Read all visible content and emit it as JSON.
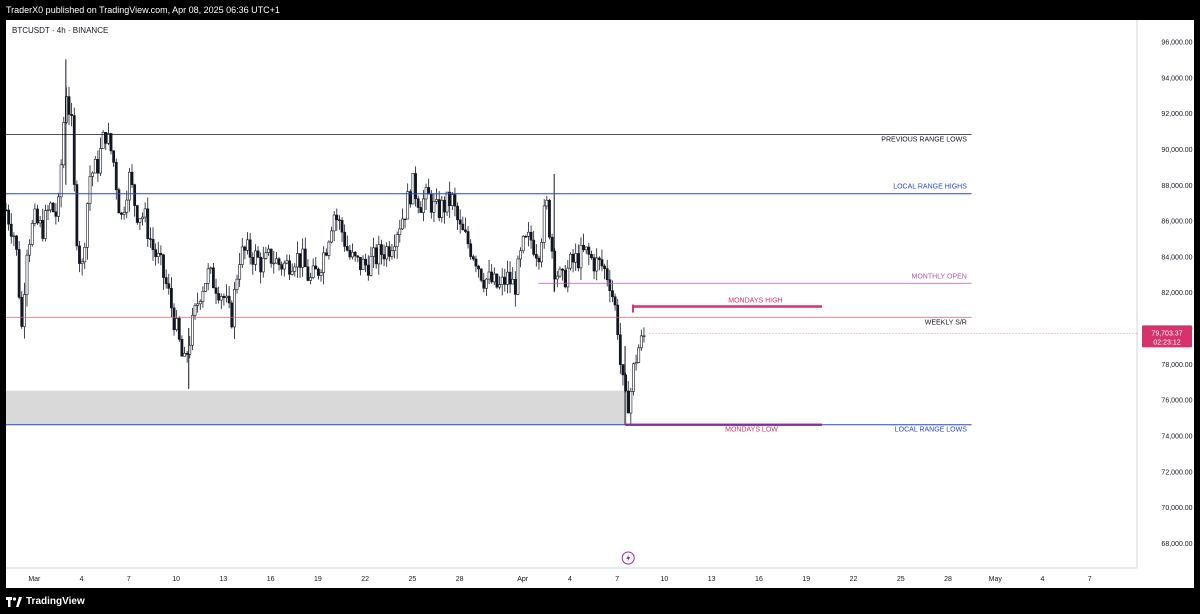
{
  "header": {
    "published_text": "TraderX0 published on TradingView.com, Apr 08, 2025 06:36 UTC+1"
  },
  "symbol_line": "BTCUSDT · 4h · BINANCE",
  "footer": {
    "brand": "TradingView"
  },
  "colors": {
    "up": "#131722",
    "down": "#131722",
    "black_line": "#131722",
    "blue_line": "#2946d8",
    "pink": "#d6336c",
    "purple": "#b05ab8",
    "weekly": "#c26470",
    "zone": "#d9d9d9",
    "price_tag": "#d6336c"
  },
  "chart_data": {
    "type": "candlestick",
    "symbol": "BTCUSDT",
    "interval": "4h",
    "exchange": "BINANCE",
    "ylim": [
      66600,
      97200
    ],
    "y_ticks": [
      68000,
      70000,
      72000,
      74000,
      76000,
      78000,
      80000,
      82000,
      84000,
      86000,
      88000,
      90000,
      92000,
      94000,
      96000
    ],
    "y_tick_labels": [
      "68,000.00",
      "70,000.00",
      "72,000.00",
      "74,000.00",
      "76,000.00",
      "78,000.00",
      "80,000.00",
      "82,000.00",
      "84,000.00",
      "86,000.00",
      "88,000.00",
      "90,000.00",
      "92,000.00",
      "94,000.00",
      "96,000.00"
    ],
    "x_ticks": [
      {
        "day": 0,
        "label": "Mar"
      },
      {
        "day": 3,
        "label": "4"
      },
      {
        "day": 6,
        "label": "7"
      },
      {
        "day": 9,
        "label": "10"
      },
      {
        "day": 12,
        "label": "13"
      },
      {
        "day": 15,
        "label": "16"
      },
      {
        "day": 18,
        "label": "19"
      },
      {
        "day": 21,
        "label": "22"
      },
      {
        "day": 24,
        "label": "25"
      },
      {
        "day": 27,
        "label": "28"
      },
      {
        "day": 31,
        "label": "Apr"
      },
      {
        "day": 34,
        "label": "4"
      },
      {
        "day": 37,
        "label": "7"
      },
      {
        "day": 40,
        "label": "10"
      },
      {
        "day": 43,
        "label": "13"
      },
      {
        "day": 46,
        "label": "16"
      },
      {
        "day": 49,
        "label": "19"
      },
      {
        "day": 52,
        "label": "22"
      },
      {
        "day": 55,
        "label": "25"
      },
      {
        "day": 58,
        "label": "28"
      },
      {
        "day": 61,
        "label": "May"
      },
      {
        "day": 64,
        "label": "4"
      },
      {
        "day": 67,
        "label": "7"
      }
    ],
    "x_range": [
      -1.8,
      70.0
    ],
    "close_path": [
      [
        -1.8,
        86600
      ],
      [
        -1.2,
        85000
      ],
      [
        -0.8,
        80000
      ],
      [
        -0.5,
        84500
      ],
      [
        0.0,
        86000
      ],
      [
        0.5,
        85500
      ],
      [
        1.0,
        86800
      ],
      [
        1.5,
        86200
      ],
      [
        2.0,
        93500
      ],
      [
        2.4,
        91000
      ],
      [
        2.6,
        86000
      ],
      [
        3.0,
        83000
      ],
      [
        3.5,
        88500
      ],
      [
        4.0,
        89000
      ],
      [
        4.5,
        91000
      ],
      [
        5.0,
        89500
      ],
      [
        5.5,
        86000
      ],
      [
        6.0,
        88500
      ],
      [
        6.5,
        86500
      ],
      [
        7.0,
        86200
      ],
      [
        7.5,
        84500
      ],
      [
        8.0,
        83500
      ],
      [
        8.5,
        82000
      ],
      [
        9.0,
        80000
      ],
      [
        9.5,
        77800
      ],
      [
        10.0,
        80000
      ],
      [
        10.5,
        82000
      ],
      [
        11.0,
        83000
      ],
      [
        11.5,
        82500
      ],
      [
        12.0,
        81800
      ],
      [
        12.5,
        80400
      ],
      [
        13.0,
        84000
      ],
      [
        13.5,
        84300
      ],
      [
        14.0,
        84000
      ],
      [
        14.5,
        83500
      ],
      [
        15.0,
        84000
      ],
      [
        15.5,
        83600
      ],
      [
        16.0,
        83500
      ],
      [
        16.5,
        84000
      ],
      [
        17.0,
        83800
      ],
      [
        17.5,
        82600
      ],
      [
        18.0,
        83200
      ],
      [
        18.5,
        84500
      ],
      [
        19.0,
        86500
      ],
      [
        19.5,
        85500
      ],
      [
        20.0,
        84000
      ],
      [
        20.5,
        83600
      ],
      [
        21.0,
        83500
      ],
      [
        21.5,
        83800
      ],
      [
        22.0,
        84200
      ],
      [
        22.5,
        84500
      ],
      [
        23.0,
        85500
      ],
      [
        23.5,
        86500
      ],
      [
        24.0,
        88000
      ],
      [
        24.5,
        87000
      ],
      [
        25.0,
        87300
      ],
      [
        25.5,
        86500
      ],
      [
        26.0,
        86800
      ],
      [
        26.5,
        87200
      ],
      [
        27.0,
        85500
      ],
      [
        27.5,
        84800
      ],
      [
        28.0,
        84000
      ],
      [
        28.5,
        82800
      ],
      [
        29.0,
        82600
      ],
      [
        29.5,
        82200
      ],
      [
        30.0,
        82800
      ],
      [
        30.5,
        82300
      ],
      [
        31.0,
        84500
      ],
      [
        31.5,
        85000
      ],
      [
        32.0,
        84200
      ],
      [
        32.5,
        87000
      ],
      [
        33.0,
        83500
      ],
      [
        33.5,
        82500
      ],
      [
        34.0,
        83500
      ],
      [
        34.5,
        83900
      ],
      [
        35.0,
        84200
      ],
      [
        35.5,
        83700
      ],
      [
        36.0,
        83500
      ],
      [
        36.5,
        82800
      ],
      [
        37.0,
        80500
      ],
      [
        37.2,
        78000
      ],
      [
        37.5,
        75800
      ],
      [
        37.8,
        76000
      ],
      [
        38.0,
        77500
      ],
      [
        38.3,
        78800
      ],
      [
        38.6,
        79300
      ],
      [
        38.8,
        79703
      ]
    ],
    "sparse_marks": [
      {
        "day": 2.0,
        "high": 95000,
        "low": 88000
      },
      {
        "day": 9.8,
        "high": 80000,
        "low": 76600
      },
      {
        "day": 33.0,
        "high": 88600,
        "low": 82000
      },
      {
        "day": 37.5,
        "high": 79000,
        "low": 74600
      }
    ],
    "zone": {
      "from_day": -1.8,
      "to_day": 37.6,
      "y_low": 74600,
      "y_high": 76500
    },
    "levels": [
      {
        "name": "PREVIOUS RANGE LOWS",
        "price": 90800,
        "color": "#131722",
        "from_day": -1.8,
        "to_day": 59.5,
        "width": 0.8
      },
      {
        "name": "LOCAL RANGE HIGHS",
        "price": 87500,
        "color": "#2946d8",
        "from_day": -1.8,
        "to_day": 59.5,
        "width": 1.0
      },
      {
        "name": "MONTHLY OPEN",
        "price": 82500,
        "color": "#b05ab8",
        "from_day": 32.0,
        "to_day": 59.5,
        "width": 0.8
      },
      {
        "name": "MONDAYS HIGH",
        "price": 81200,
        "color": "#d6336c",
        "from_day": 38.0,
        "to_day": 50.0,
        "width": 2.5
      },
      {
        "name": "WEEKLY S/R",
        "price": 80600,
        "color": "#c26470",
        "from_day": -1.8,
        "to_day": 59.5,
        "width": 0.8
      },
      {
        "name": "MONDAYS LOW",
        "price": 74600,
        "color": "#d6336c",
        "from_day": 37.5,
        "to_day": 50.0,
        "width": 2.5
      },
      {
        "name": "LOCAL RANGE LOWS",
        "price": 74600,
        "color": "#2946d8",
        "from_day": -1.8,
        "to_day": 59.5,
        "width": 1.0
      }
    ],
    "current_price": {
      "price_label": "79,703.37",
      "countdown": "02:23:12",
      "price": 79703.37
    }
  },
  "labels": [
    {
      "text": "PREVIOUS RANGE LOWS",
      "price": 90800,
      "color": "#131722",
      "anchor": "right_edge",
      "offset_y": 7
    },
    {
      "text": "LOCAL RANGE HIGHS",
      "price": 87500,
      "color": "#2946d8",
      "anchor": "right_edge",
      "offset_y": -5
    },
    {
      "text": "MONTHLY OPEN",
      "price": 82500,
      "color": "#b05ab8",
      "anchor": "right_edge",
      "offset_y": -5
    },
    {
      "text": "MONDAYS HIGH",
      "price": 81200,
      "color": "#d6336c",
      "anchor": "level_end",
      "offset_y": -4
    },
    {
      "text": "WEEKLY S/R",
      "price": 80600,
      "color": "#131722",
      "anchor": "right_edge",
      "offset_y": 7
    },
    {
      "text": "MONDAYS LOW",
      "price": 74600,
      "color": "#d6336c",
      "anchor": "level_end",
      "offset_y": 7
    },
    {
      "text": "LOCAL RANGE LOWS",
      "price": 74600,
      "color": "#2946d8",
      "anchor": "right_edge",
      "offset_y": 7
    }
  ]
}
